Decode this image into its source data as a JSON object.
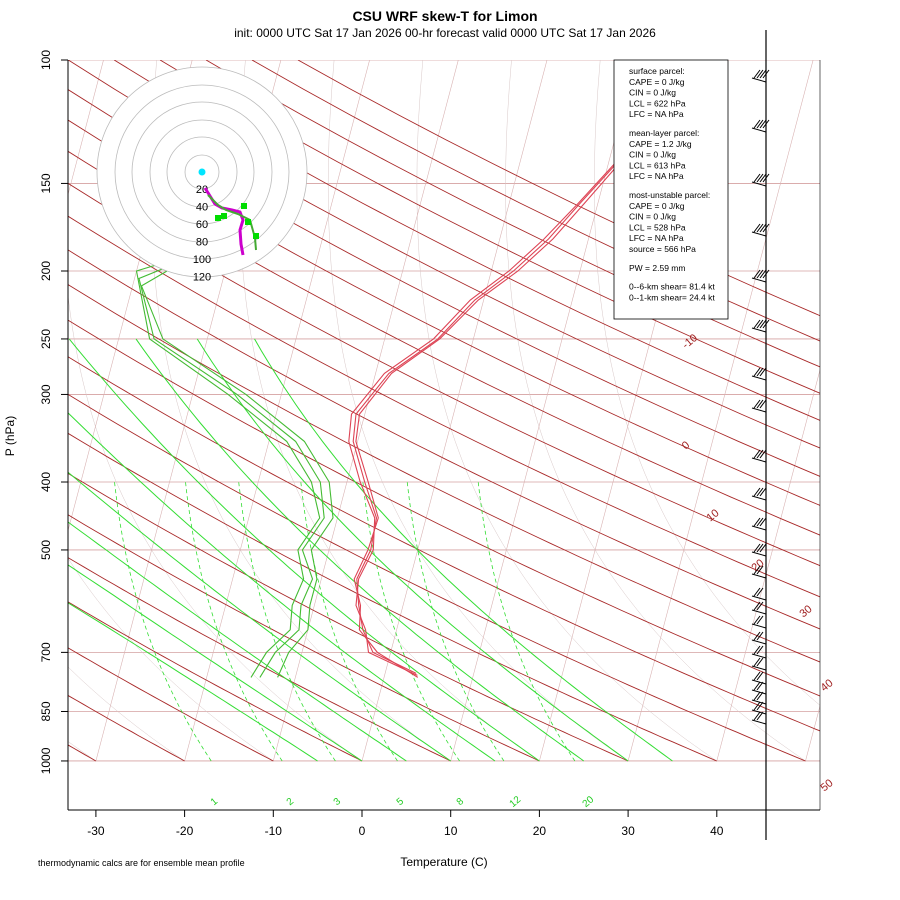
{
  "title": "CSU WRF skew-T for Limon",
  "subtitle": "init: 0000 UTC Sat 17 Jan 2026     00-hr forecast valid 0000 UTC Sat 17 Jan 2026",
  "footnote": "thermodynamic calcs are for ensemble mean profile",
  "colors": {
    "isotherm": "#a02020",
    "isobar": "#d4a0a0",
    "moist_adiabat": "#8ab4a0",
    "dry_adiabat": "#a82828",
    "mixing_ratio": "#22cc22",
    "temperature": "#dd4455",
    "dewpoint": "#44bb33",
    "hodograph_ring": "#bbbbbb"
  },
  "info": {
    "surface_parcel": [
      "surface parcel:",
      "CAPE = 0 J/kg",
      "CIN = 0 J/kg",
      "LCL = 622 hPa",
      "LFC = NA hPa"
    ],
    "mean_layer_parcel": [
      "mean-layer parcel:",
      "CAPE = 1.2 J/kg",
      "CIN = 0 J/kg",
      "LCL = 613 hPa",
      "LFC = NA hPa"
    ],
    "most_unstable_parcel": [
      "most-unstable parcel:",
      "CAPE = 0 J/kg",
      "CIN = 0 J/kg",
      "LCL = 528 hPa",
      "LFC = NA hPa",
      "source = 566 hPa"
    ],
    "pw": "PW =  2.59 mm",
    "shear": [
      "0--6-km shear= 81.4 kt",
      "0--1-km shear= 24.4 kt"
    ]
  },
  "chart_data": {
    "type": "line",
    "title": "CSU WRF skew-T for Limon",
    "xlabel": "Temperature (C)",
    "ylabel": "P (hPa)",
    "xlim": [
      -33,
      51
    ],
    "ylim": [
      1000,
      100
    ],
    "y_scale": "log",
    "x_ticks": [
      -30,
      -20,
      -10,
      0,
      10,
      20,
      30,
      40
    ],
    "y_ticks": [
      100,
      150,
      200,
      250,
      300,
      400,
      500,
      700,
      850,
      1000
    ],
    "isotherm_labels": [
      "-10",
      "0",
      "10",
      "20",
      "30",
      "40",
      "50"
    ],
    "mixing_ratio_labels": [
      "1",
      "2",
      "3",
      "5",
      "8",
      "12",
      "20"
    ],
    "series": [
      {
        "kind": "temperature",
        "values": [
          [
            750,
            3.5
          ],
          [
            700,
            -2
          ],
          [
            650,
            -3.8
          ],
          [
            600,
            -5
          ],
          [
            550,
            -6
          ],
          [
            500,
            -5.3
          ],
          [
            450,
            -5.6
          ],
          [
            400,
            -8
          ],
          [
            350,
            -10.5
          ],
          [
            320,
            -11
          ],
          [
            280,
            -8.5
          ],
          [
            250,
            -4
          ],
          [
            220,
            -1
          ],
          [
            200,
            2.5
          ],
          [
            180,
            5.5
          ],
          [
            160,
            8
          ],
          [
            140,
            11
          ],
          [
            120,
            14.5
          ]
        ]
      },
      {
        "kind": "temperature",
        "values": [
          [
            755,
            3.7
          ],
          [
            700,
            -2.5
          ],
          [
            650,
            -3.5
          ],
          [
            600,
            -5.3
          ],
          [
            550,
            -5.8
          ],
          [
            500,
            -5.0
          ],
          [
            450,
            -5.8
          ],
          [
            400,
            -8.5
          ],
          [
            350,
            -11
          ],
          [
            320,
            -11.5
          ],
          [
            280,
            -9
          ],
          [
            250,
            -4.5
          ],
          [
            220,
            -1.5
          ],
          [
            200,
            2
          ],
          [
            180,
            5
          ],
          [
            160,
            7.8
          ],
          [
            140,
            10.8
          ],
          [
            120,
            14.3
          ]
        ]
      },
      {
        "kind": "temperature",
        "values": [
          [
            760,
            3.8
          ],
          [
            700,
            -1.5
          ],
          [
            650,
            -4.2
          ],
          [
            600,
            -4.8
          ],
          [
            550,
            -6.3
          ],
          [
            500,
            -5.6
          ],
          [
            450,
            -5.4
          ],
          [
            400,
            -7.6
          ],
          [
            350,
            -10.2
          ],
          [
            320,
            -10.6
          ],
          [
            280,
            -8.2
          ],
          [
            250,
            -3.8
          ],
          [
            220,
            -0.6
          ],
          [
            200,
            3
          ],
          [
            180,
            6
          ],
          [
            160,
            8.5
          ],
          [
            140,
            11.3
          ],
          [
            120,
            14.7
          ]
        ]
      },
      {
        "kind": "dewpoint",
        "values": [
          [
            760,
            -12
          ],
          [
            700,
            -11.5
          ],
          [
            650,
            -10
          ],
          [
            600,
            -10.5
          ],
          [
            550,
            -10.5
          ],
          [
            500,
            -12
          ],
          [
            450,
            -10.5
          ],
          [
            400,
            -12
          ],
          [
            350,
            -16
          ],
          [
            300,
            -24
          ],
          [
            250,
            -35
          ],
          [
            210,
            -39
          ],
          [
            190,
            -34
          ],
          [
            175,
            -28
          ]
        ]
      },
      {
        "kind": "dewpoint",
        "values": [
          [
            760,
            -14
          ],
          [
            700,
            -13
          ],
          [
            650,
            -11
          ],
          [
            600,
            -11.5
          ],
          [
            550,
            -11
          ],
          [
            500,
            -13
          ],
          [
            450,
            -11.5
          ],
          [
            400,
            -13
          ],
          [
            350,
            -17
          ],
          [
            300,
            -25
          ],
          [
            250,
            -36
          ],
          [
            205,
            -39.5
          ],
          [
            188,
            -33
          ],
          [
            172,
            -27.5
          ]
        ]
      },
      {
        "kind": "dewpoint",
        "values": [
          [
            760,
            -15
          ],
          [
            700,
            -14
          ],
          [
            650,
            -12
          ],
          [
            600,
            -12.5
          ],
          [
            550,
            -12
          ],
          [
            500,
            -13.5
          ],
          [
            450,
            -12
          ],
          [
            400,
            -14
          ],
          [
            350,
            -18
          ],
          [
            300,
            -26
          ],
          [
            250,
            -36.5
          ],
          [
            200,
            -40
          ],
          [
            185,
            -32
          ],
          [
            170,
            -27
          ]
        ]
      }
    ]
  }
}
